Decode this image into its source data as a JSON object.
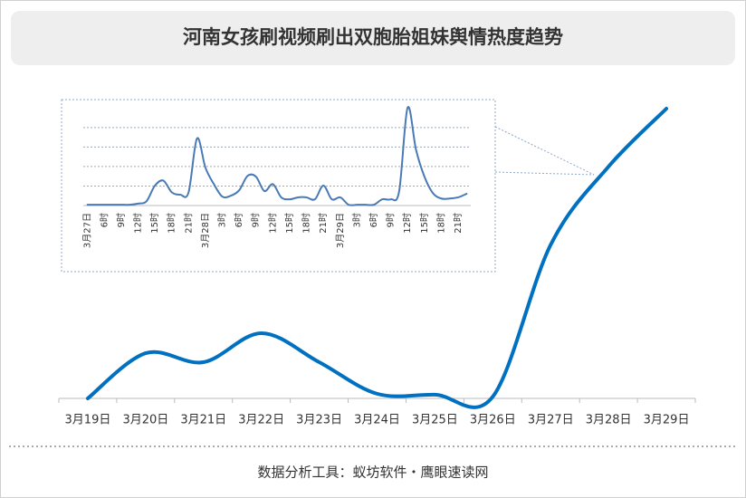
{
  "chart_data": [
    {
      "type": "line",
      "title": "河南女孩刷视频刷出双胞胎姐妹舆情热度趋势",
      "categories": [
        "3月19日",
        "3月20日",
        "3月21日",
        "3月22日",
        "3月23日",
        "3月24日",
        "3月25日",
        "3月26日",
        "3月27日",
        "3月28日",
        "3月29日"
      ],
      "values": [
        0,
        15.6,
        12.5,
        22.5,
        12.5,
        1.6,
        1.3,
        0.6,
        53,
        80,
        100
      ],
      "color": "#0070c0",
      "ylim": [
        0,
        100
      ],
      "smooth": true,
      "footer": "数据分析工具：蚁坊软件・鹰眼速读网"
    },
    {
      "type": "line",
      "categories": [
        "3月27日",
        null,
        "6时",
        null,
        "9时",
        null,
        "12时",
        null,
        "15时",
        null,
        "18时",
        null,
        "21时",
        null,
        "3月28日",
        null,
        "3时",
        null,
        "6时",
        null,
        "9时",
        null,
        "12时",
        null,
        "15时",
        null,
        "18时",
        null,
        "21时",
        null,
        "3月29日",
        null,
        "3时",
        null,
        "6时",
        null,
        "9时",
        null,
        "12时",
        null,
        "15时",
        null,
        "18时",
        null,
        "21时",
        null
      ],
      "values": [
        0.2,
        0.2,
        0.2,
        0.2,
        0.2,
        0.2,
        0.5,
        1.1,
        5.1,
        6.4,
        3.4,
        2.8,
        3.4,
        17.2,
        9.7,
        5.5,
        2.3,
        2.5,
        3.9,
        7.6,
        7.4,
        3.7,
        5.5,
        2.1,
        1.6,
        2.1,
        2.1,
        1.6,
        5.1,
        1.6,
        2.1,
        0.2,
        0.2,
        0.2,
        0.2,
        1.6,
        1.6,
        3.7,
        25.1,
        14.3,
        7.4,
        3.2,
        1.8,
        1.8,
        2.1,
        3.0
      ],
      "color": "#4a7ab5",
      "ylim": [
        0,
        26
      ],
      "yticks": [
        0,
        5,
        10,
        15,
        20
      ],
      "grid": true,
      "smooth": true
    }
  ]
}
